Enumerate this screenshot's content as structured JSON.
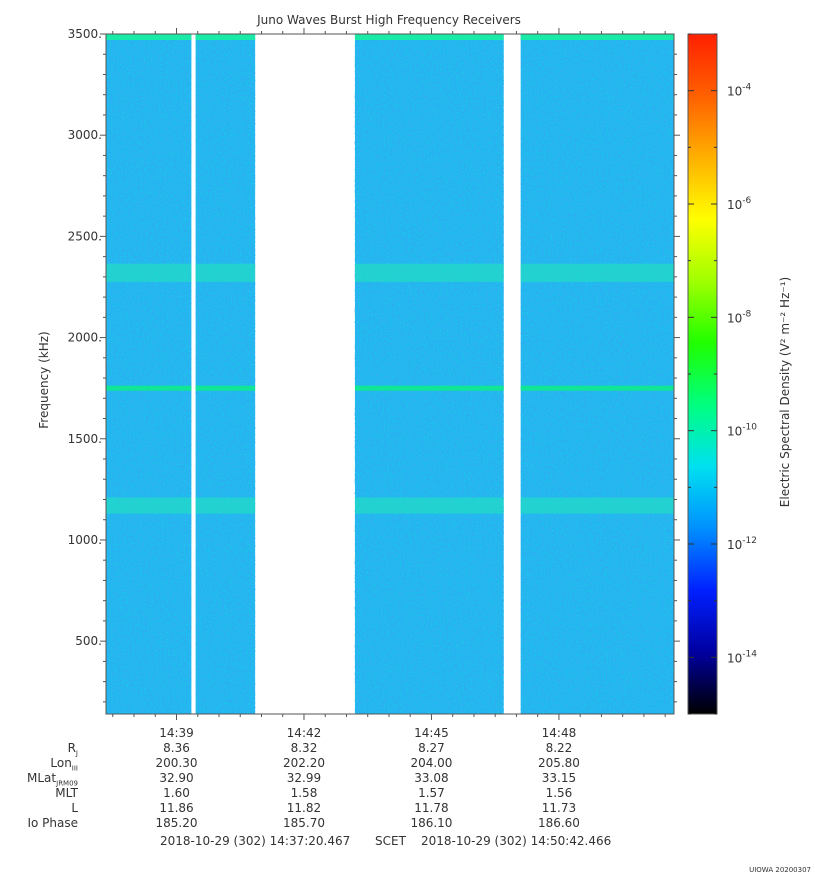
{
  "chart_data": {
    "type": "heatmap",
    "title": "Juno Waves Burst High Frequency Receivers",
    "ylabel": "Frequency (kHz)",
    "ylim": [
      140,
      3500
    ],
    "y_ticks": [
      "3500.",
      "3000.",
      "2500.",
      "2000.",
      "1500.",
      "1000.",
      "500."
    ],
    "y_tick_values": [
      3500,
      3000,
      2500,
      2000,
      1500,
      1000,
      500
    ],
    "x_ticks": [
      "14:39",
      "14:42",
      "14:45",
      "14:48"
    ],
    "x_tick_minutes": [
      39,
      42,
      45,
      48
    ],
    "xlim_minutes": [
      37.3408,
      50.7078
    ],
    "data_segments_minutes": [
      [
        37.3408,
        39.35
      ],
      [
        39.45,
        40.85
      ],
      [
        43.2,
        46.7
      ],
      [
        47.1,
        50.7078
      ]
    ],
    "emission_bands_khz": [
      {
        "center": 2320,
        "width": 90,
        "level": "10^-11"
      },
      {
        "center": 1750,
        "width": 25,
        "level": "10^-9"
      },
      {
        "center": 1170,
        "width": 80,
        "level": "10^-11"
      }
    ],
    "background_level": "10^-12",
    "colorbar": {
      "label": "Electric Spectral Density (V² m⁻² Hz⁻¹)",
      "scale": "log",
      "min_exp": -15,
      "max_exp": -3,
      "tick_exps": [
        -4,
        -6,
        -8,
        -10,
        -12,
        -14
      ],
      "colors": [
        "#000000",
        "#0000a0",
        "#0020ff",
        "#0090ff",
        "#00e0f0",
        "#00ff80",
        "#20ff00",
        "#a0ff00",
        "#ffff00",
        "#ffb000",
        "#ff6000",
        "#ff2000"
      ]
    },
    "ephemeris": {
      "labels": [
        "RJ",
        "LonIII",
        "MLatJRM09",
        "MLT",
        "L",
        "Io Phase"
      ],
      "columns": [
        {
          "time": "14:39",
          "values": [
            "8.36",
            "200.30",
            "32.90",
            "1.60",
            "11.86",
            "185.20"
          ]
        },
        {
          "time": "14:42",
          "values": [
            "8.32",
            "202.20",
            "32.99",
            "1.58",
            "11.82",
            "185.70"
          ]
        },
        {
          "time": "14:45",
          "values": [
            "8.27",
            "204.00",
            "33.08",
            "1.57",
            "11.78",
            "186.10"
          ]
        },
        {
          "time": "14:48",
          "values": [
            "8.22",
            "205.80",
            "33.15",
            "1.56",
            "11.73",
            "186.60"
          ]
        }
      ]
    }
  },
  "labels": {
    "r_main": "R",
    "r_sub": "J",
    "lon_main": "Lon",
    "lon_sub": "III",
    "mlat_main": "MLat",
    "mlat_sub": "JRM09",
    "mlt": "MLT",
    "l": "L",
    "io": "Io Phase"
  },
  "footer": {
    "start": "2018-10-29 (302) 14:37:20.467",
    "scet": "SCET",
    "end": "2018-10-29 (302) 14:50:42.466"
  },
  "stamp": "UIOWA 20200307"
}
